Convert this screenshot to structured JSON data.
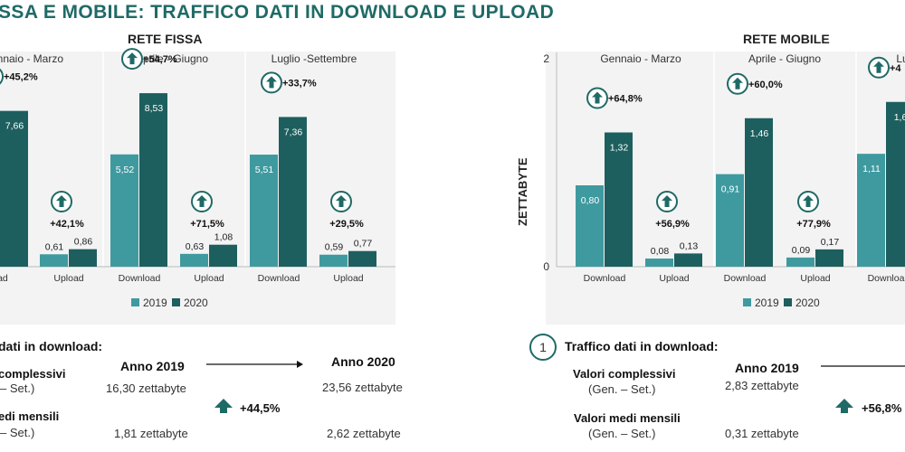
{
  "title": "SSA E MOBILE: TRAFFICO DATI IN DOWNLOAD E UPLOAD",
  "colors": {
    "c2019": "#3f9aa0",
    "c2020": "#1d5f5e",
    "accent": "#1f6a66"
  },
  "legend": {
    "y2019": "2019",
    "y2020": "2020"
  },
  "chart_data": [
    {
      "type": "bar",
      "title": "RETE FISSA",
      "groups": [
        "ennaio - Marzo",
        "Aprile - Giugno",
        "Luglio -Settembre"
      ],
      "categories": [
        "oad",
        "Upload",
        "Download",
        "Upload",
        "Download",
        "Upload"
      ],
      "series": [
        {
          "name": "2019",
          "values": [
            null,
            0.61,
            5.52,
            0.63,
            5.51,
            0.59
          ],
          "labels": [
            "",
            "0,61",
            "5,52",
            "0,63",
            "5,51",
            "0,59"
          ]
        },
        {
          "name": "2020",
          "values": [
            7.66,
            0.86,
            8.53,
            1.08,
            7.36,
            0.77
          ],
          "labels": [
            "7,66",
            "0,86",
            "8,53",
            "1,08",
            "7,36",
            "0,77"
          ]
        }
      ],
      "annotations": [
        "+45,2%",
        "+42,1%",
        "+54,7%",
        "+71,5%",
        "+33,7%",
        "+29,5%"
      ],
      "ylim": [
        0,
        10
      ],
      "legend_position": "bottom"
    },
    {
      "type": "bar",
      "title": "RETE MOBILE",
      "ylabel": "ZETTABYTE",
      "yticks": [
        "0",
        "2"
      ],
      "groups": [
        "Gennaio - Marzo",
        "Aprile - Giugno",
        "Lugli"
      ],
      "categories": [
        "Download",
        "Upload",
        "Download",
        "Upload",
        "Downloa"
      ],
      "series": [
        {
          "name": "2019",
          "values": [
            0.8,
            0.08,
            0.91,
            0.09,
            1.11
          ],
          "labels": [
            "0,80",
            "0,08",
            "0,91",
            "0,09",
            "1,11"
          ]
        },
        {
          "name": "2020",
          "values": [
            1.32,
            0.13,
            1.46,
            0.17,
            1.62
          ],
          "labels": [
            "1,32",
            "0,13",
            "1,46",
            "0,17",
            "1,6"
          ]
        }
      ],
      "annotations": [
        "+64,8%",
        "+56,9%",
        "+60,0%",
        "+77,9%",
        "+4"
      ],
      "ylim": [
        0,
        2
      ],
      "legend_position": "bottom"
    }
  ],
  "summary_left": {
    "heading": "dati in download:",
    "year_2019": "Anno 2019",
    "year_2020": "Anno 2020",
    "row1_label": "complessivi",
    "row1_sub": "– Set.)",
    "row1_v2019": "16,30 zettabyte",
    "row1_v2020": "23,56 zettabyte",
    "row2_label": "edi mensili",
    "row2_sub": "– Set.)",
    "row2_v2019": "1,81 zettabyte",
    "row2_v2020": "2,62 zettabyte",
    "delta": "+44,5%"
  },
  "summary_right": {
    "number": "1",
    "heading": "Traffico dati in download:",
    "year_2019": "Anno 2019",
    "row1_label": "Valori complessivi",
    "row1_sub": "(Gen. – Set.)",
    "row1_v2019": "2,83 zettabyte",
    "row2_label": "Valori medi mensili",
    "row2_sub": "(Gen. – Set.)",
    "row2_v2019": "0,31 zettabyte",
    "delta": "+56,8%"
  }
}
